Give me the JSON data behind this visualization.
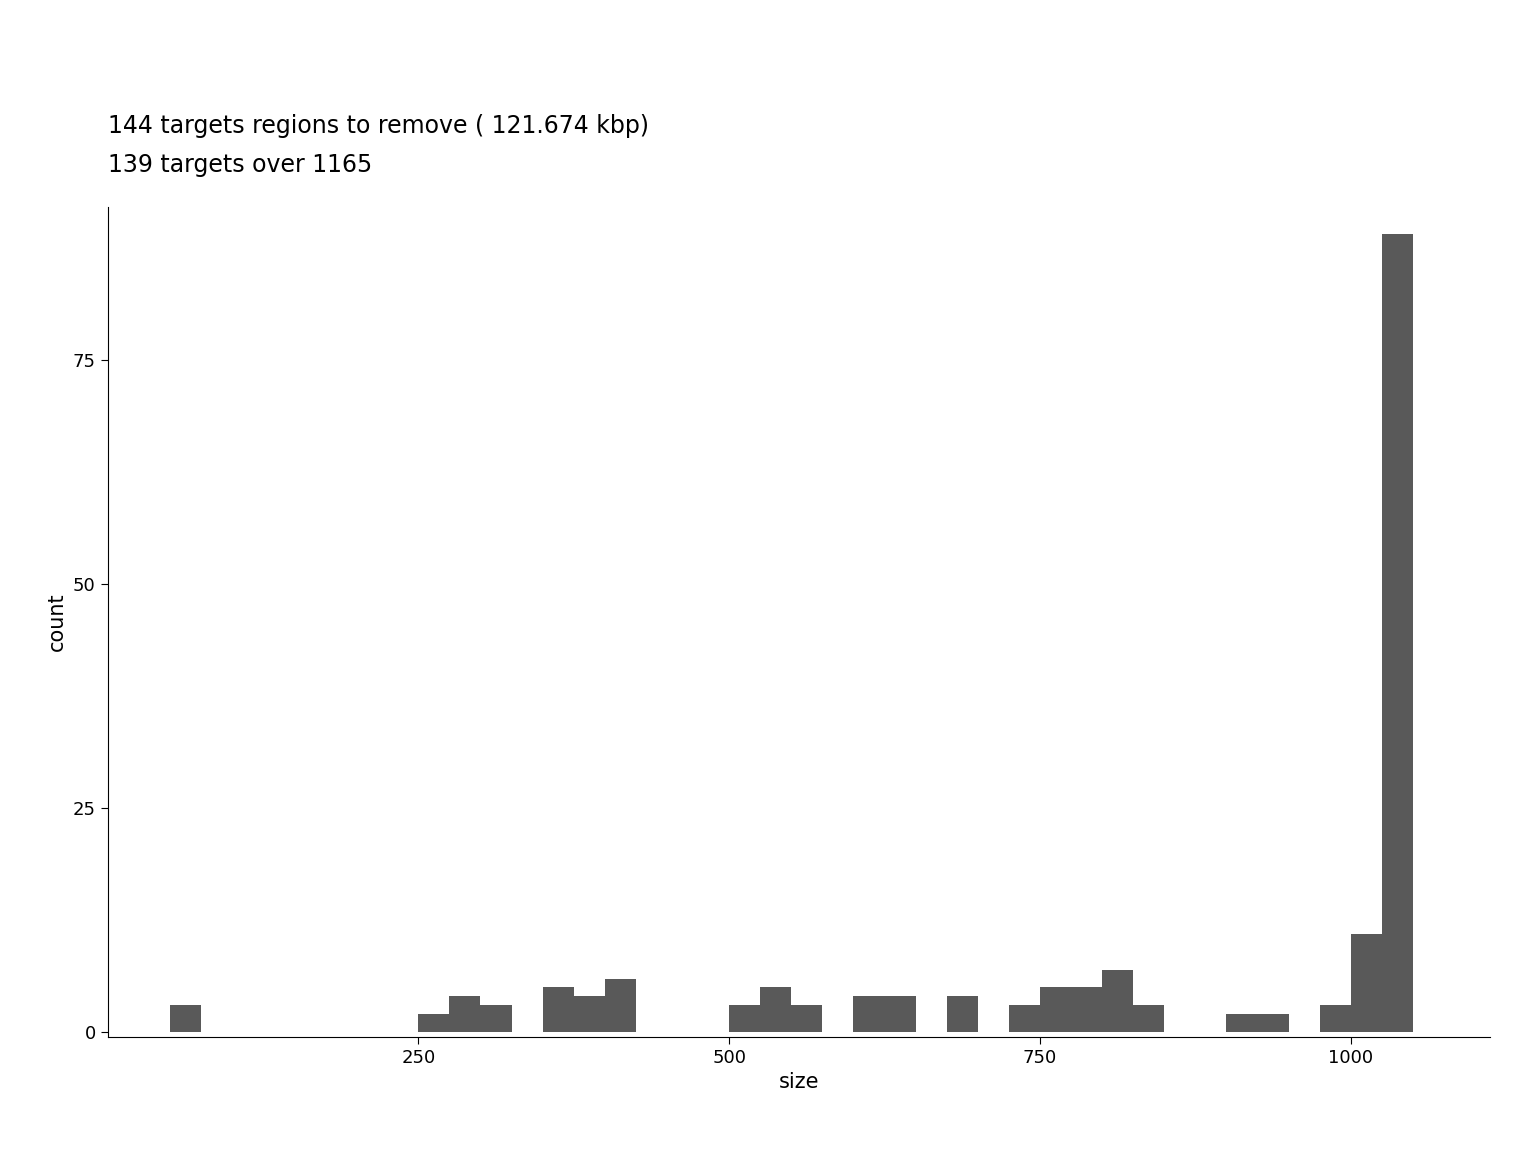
{
  "title_line1": "144 targets regions to remove ( 121.674 kbp)",
  "title_line2": "139 targets over 1165",
  "xlabel": "size",
  "ylabel": "count",
  "bar_color": "#595959",
  "background_color": "#ffffff",
  "xlim": [
    0,
    1112
  ],
  "ylim": [
    -0.5,
    92
  ],
  "yticks": [
    0,
    25,
    50,
    75
  ],
  "xticks": [
    250,
    500,
    750,
    1000
  ],
  "title_fontsize": 17,
  "axis_fontsize": 15,
  "tick_fontsize": 13,
  "bin_edges": [
    50,
    75,
    100,
    125,
    150,
    175,
    200,
    225,
    250,
    275,
    300,
    325,
    350,
    375,
    400,
    425,
    450,
    475,
    500,
    525,
    550,
    575,
    600,
    625,
    650,
    675,
    700,
    725,
    750,
    775,
    800,
    825,
    850,
    875,
    900,
    925,
    975,
    1000,
    1025,
    1050
  ],
  "bin_counts": [
    3,
    0,
    0,
    0,
    0,
    0,
    0,
    0,
    2,
    4,
    3,
    0,
    5,
    4,
    6,
    0,
    0,
    0,
    3,
    5,
    3,
    0,
    4,
    4,
    0,
    4,
    0,
    3,
    5,
    5,
    7,
    3,
    0,
    0,
    2,
    2,
    3,
    11,
    89,
    0
  ]
}
